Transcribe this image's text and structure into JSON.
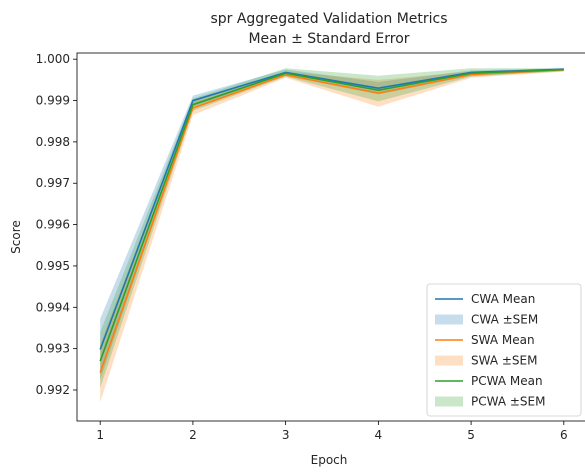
{
  "chart_data": {
    "type": "line",
    "title": "spr Aggregated Validation Metrics",
    "subtitle": "Mean ± Standard Error",
    "xlabel": "Epoch",
    "ylabel": "Score",
    "x": [
      1,
      2,
      3,
      4,
      5,
      6
    ],
    "xlim": [
      0.75,
      6.25
    ],
    "ylim": [
      0.99125,
      1.00015
    ],
    "xticks": [
      "1",
      "2",
      "3",
      "4",
      "5",
      "6"
    ],
    "yticks": [
      "0.992",
      "0.993",
      "0.994",
      "0.995",
      "0.996",
      "0.997",
      "0.998",
      "0.999",
      "1.000"
    ],
    "ytick_values": [
      0.992,
      0.993,
      0.994,
      0.995,
      0.996,
      0.997,
      0.998,
      0.999,
      1.0
    ],
    "grid": false,
    "legend_position": "bottom-right",
    "series": [
      {
        "name": "CWA Mean",
        "band_name": "CWA ±SEM",
        "color": "#1f77b4",
        "values": [
          0.99298,
          0.999,
          0.99968,
          0.9993,
          0.99968,
          0.99976
        ],
        "lower": [
          0.99225,
          0.99885,
          0.9996,
          0.99915,
          0.9996,
          0.99972
        ],
        "upper": [
          0.99372,
          0.99912,
          0.99975,
          0.99945,
          0.99973,
          0.99978
        ]
      },
      {
        "name": "SWA Mean",
        "band_name": "SWA ±SEM",
        "color": "#ff7f0e",
        "values": [
          0.99242,
          0.99882,
          0.99962,
          0.99918,
          0.99963,
          0.99974
        ],
        "lower": [
          0.9917,
          0.99865,
          0.99955,
          0.99885,
          0.99955,
          0.9997
        ],
        "upper": [
          0.99312,
          0.99898,
          0.9997,
          0.9995,
          0.9997,
          0.99978
        ]
      },
      {
        "name": "PCWA Mean",
        "band_name": "PCWA ±SEM",
        "color": "#2ca02c",
        "values": [
          0.9927,
          0.9989,
          0.99966,
          0.99925,
          0.99966,
          0.99975
        ],
        "lower": [
          0.99205,
          0.99875,
          0.99958,
          0.99898,
          0.99958,
          0.99971
        ],
        "upper": [
          0.9934,
          0.99905,
          0.99978,
          0.9996,
          0.99978,
          0.99978
        ]
      }
    ]
  }
}
